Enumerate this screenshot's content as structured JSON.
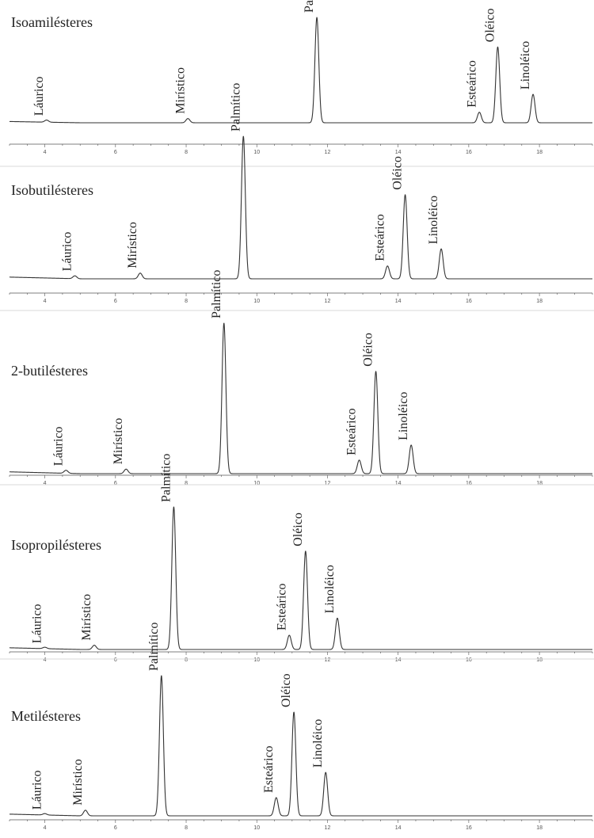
{
  "chart_data": [
    {
      "type": "line",
      "title": "Isoamilésteres",
      "xlim": [
        3,
        19.5
      ],
      "x_ticks": [
        4,
        6,
        8,
        10,
        12,
        14,
        16,
        18
      ],
      "peaks": [
        {
          "label": "Láurico",
          "x": 4.05,
          "height": 0.02
        },
        {
          "label": "Mirístico",
          "x": 8.05,
          "height": 0.04
        },
        {
          "label": "Palmítico",
          "x": 11.7,
          "height": 1.0
        },
        {
          "label": "Esteárico",
          "x": 16.3,
          "height": 0.1
        },
        {
          "label": "Oléico",
          "x": 16.82,
          "height": 0.72
        },
        {
          "label": "Linoléico",
          "x": 17.82,
          "height": 0.27
        }
      ]
    },
    {
      "type": "line",
      "title": "Isobutilésteres",
      "xlim": [
        3,
        19.5
      ],
      "x_ticks": [
        4,
        6,
        8,
        10,
        12,
        14,
        16,
        18
      ],
      "peaks": [
        {
          "label": "Láurico",
          "x": 4.85,
          "height": 0.02
        },
        {
          "label": "Mirístico",
          "x": 6.7,
          "height": 0.04
        },
        {
          "label": "Palmítico",
          "x": 9.62,
          "height": 1.0
        },
        {
          "label": "Esteárico",
          "x": 13.7,
          "height": 0.09
        },
        {
          "label": "Oléico",
          "x": 14.2,
          "height": 0.59
        },
        {
          "label": "Linoléico",
          "x": 15.22,
          "height": 0.21
        }
      ]
    },
    {
      "type": "line",
      "title": "2-butilésteres",
      "xlim": [
        3,
        19.5
      ],
      "x_ticks": [
        4,
        6,
        8,
        10,
        12,
        14,
        16,
        18
      ],
      "peaks": [
        {
          "label": "Láurico",
          "x": 4.6,
          "height": 0.02
        },
        {
          "label": "Mirístico",
          "x": 6.3,
          "height": 0.03
        },
        {
          "label": "Palmítico",
          "x": 9.07,
          "height": 1.0
        },
        {
          "label": "Esteárico",
          "x": 12.9,
          "height": 0.09
        },
        {
          "label": "Oléico",
          "x": 13.37,
          "height": 0.68
        },
        {
          "label": "Linoléico",
          "x": 14.37,
          "height": 0.19
        }
      ]
    },
    {
      "type": "line",
      "title": "Isopropilésteres",
      "xlim": [
        3,
        19.5
      ],
      "x_ticks": [
        4,
        6,
        8,
        10,
        12,
        14,
        16,
        18
      ],
      "peaks": [
        {
          "label": "Láurico",
          "x": 4.0,
          "height": 0.01
        },
        {
          "label": "Mirístico",
          "x": 5.4,
          "height": 0.03
        },
        {
          "label": "Palmítico",
          "x": 7.65,
          "height": 1.0
        },
        {
          "label": "Esteárico",
          "x": 10.92,
          "height": 0.1
        },
        {
          "label": "Oléico",
          "x": 11.38,
          "height": 0.69
        },
        {
          "label": "Linoléico",
          "x": 12.28,
          "height": 0.22
        }
      ]
    },
    {
      "type": "line",
      "title": "Metilésteres",
      "xlim": [
        3,
        19.5
      ],
      "x_ticks": [
        4,
        6,
        8,
        10,
        12,
        14,
        16,
        18
      ],
      "peaks": [
        {
          "label": "Láurico",
          "x": 4.0,
          "height": 0.01
        },
        {
          "label": "Mirístico",
          "x": 5.15,
          "height": 0.04
        },
        {
          "label": "Palmítico",
          "x": 7.3,
          "height": 1.0
        },
        {
          "label": "Esteárico",
          "x": 10.55,
          "height": 0.13
        },
        {
          "label": "Oléico",
          "x": 11.05,
          "height": 0.74
        },
        {
          "label": "Linoléico",
          "x": 11.95,
          "height": 0.31
        }
      ]
    }
  ]
}
